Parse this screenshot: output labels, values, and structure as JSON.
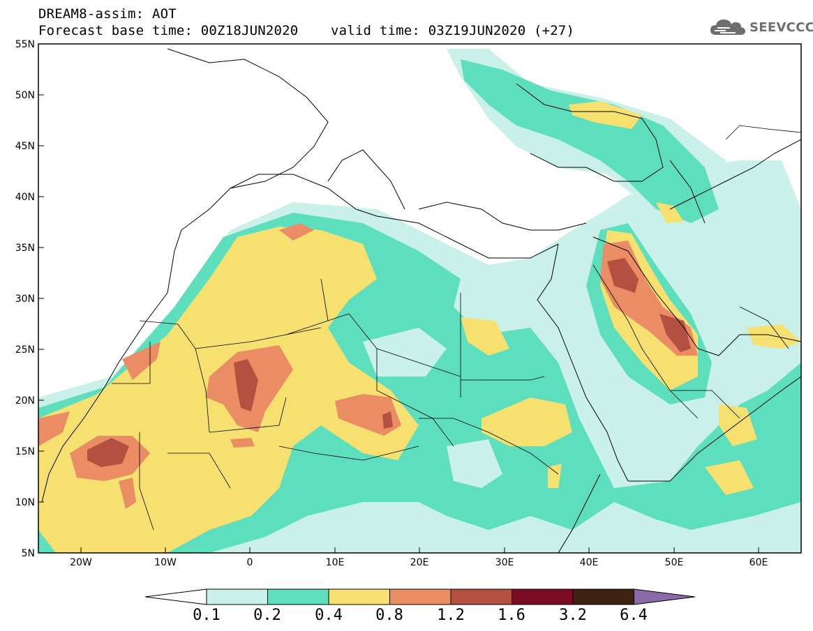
{
  "title": {
    "line1": "DREAM8-assim: AOT",
    "line2": "Forecast base time: 00Z18JUN2020    valid time: 03Z19JUN2020 (+27)"
  },
  "logo": {
    "text": "SEEVCCC",
    "icon": "cloud-icon"
  },
  "map": {
    "variable": "AOT",
    "model": "DREAM8-assim",
    "lat_range": [
      5,
      55
    ],
    "lon_range": [
      -25,
      65
    ],
    "lat_ticks": [
      "5N",
      "10N",
      "15N",
      "20N",
      "25N",
      "30N",
      "35N",
      "40N",
      "45N",
      "50N",
      "55N"
    ],
    "lon_ticks": [
      "20W",
      "10W",
      "0",
      "10E",
      "20E",
      "30E",
      "40E",
      "50E",
      "60E"
    ]
  },
  "colorbar": {
    "levels": [
      "0.1",
      "0.2",
      "0.4",
      "0.8",
      "1.2",
      "1.6",
      "3.2",
      "6.4"
    ],
    "colors": [
      "#ffffff",
      "#c9f0e9",
      "#5ddfbd",
      "#f5e070",
      "#ea8c64",
      "#b3503f",
      "#7c0a22",
      "#3f2312",
      "#8a6aa8"
    ]
  }
}
